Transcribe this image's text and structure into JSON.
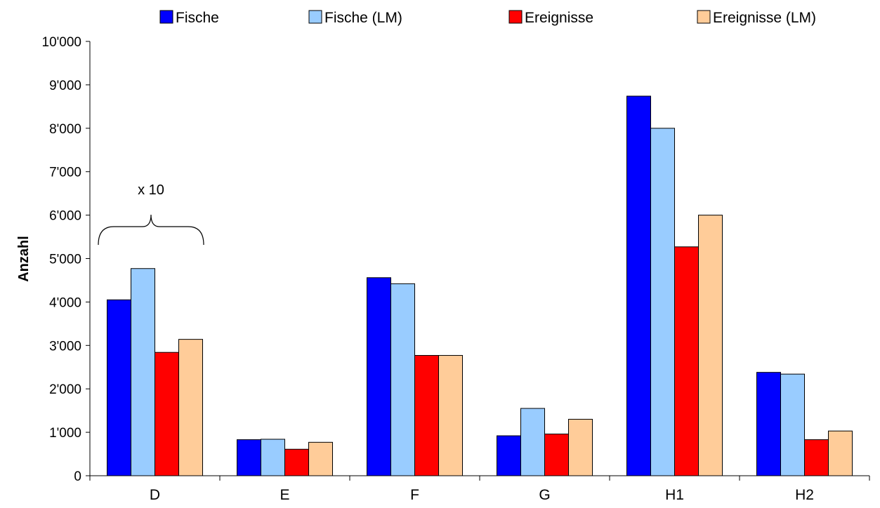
{
  "chart_data": {
    "type": "bar",
    "categories": [
      "D",
      "E",
      "F",
      "G",
      "H1",
      "H2"
    ],
    "series": [
      {
        "name": "Fische",
        "color": "#0000ff",
        "values": [
          4050,
          830,
          4560,
          920,
          8740,
          2380
        ]
      },
      {
        "name": "Fische (LM)",
        "color": "#99ccff",
        "values": [
          4770,
          840,
          4420,
          1550,
          8000,
          2340
        ]
      },
      {
        "name": "Ereignisse",
        "color": "#ff0000",
        "values": [
          2840,
          610,
          2770,
          960,
          5270,
          830
        ]
      },
      {
        "name": "Ereignisse (LM)",
        "color": "#ffcc99",
        "values": [
          3140,
          770,
          2770,
          1300,
          6000,
          1030
        ]
      }
    ],
    "title": "",
    "xlabel": "",
    "ylabel": "Anzahl",
    "ylim": [
      0,
      10000
    ],
    "yticks": [
      0,
      1000,
      2000,
      3000,
      4000,
      5000,
      6000,
      7000,
      8000,
      9000,
      10000
    ],
    "ytick_labels": [
      "0",
      "1'000",
      "2'000",
      "3'000",
      "4'000",
      "5'000",
      "6'000",
      "7'000",
      "8'000",
      "9'000",
      "10'000"
    ],
    "grid": false,
    "legend_position": "top",
    "annotation": {
      "text": "x 10",
      "category": "D"
    }
  }
}
